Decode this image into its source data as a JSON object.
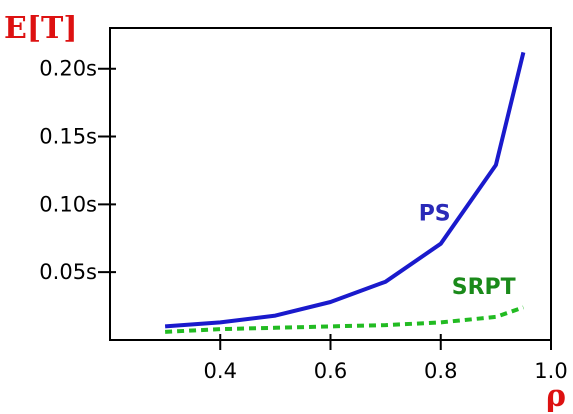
{
  "chart_data": {
    "type": "line",
    "ylabel": "E[T]",
    "xlabel": "ρ",
    "xlim": [
      0.2,
      1.0
    ],
    "ylim": [
      0,
      0.23
    ],
    "x_ticks": [
      {
        "value": 0.4,
        "label": "0.4"
      },
      {
        "value": 0.6,
        "label": "0.6"
      },
      {
        "value": 0.8,
        "label": "0.8"
      },
      {
        "value": 1.0,
        "label": "1.0"
      }
    ],
    "y_ticks": [
      {
        "value": 0.05,
        "label": "0.05s"
      },
      {
        "value": 0.1,
        "label": "0.10s"
      },
      {
        "value": 0.15,
        "label": "0.15s"
      },
      {
        "value": 0.2,
        "label": "0.20s"
      }
    ],
    "grid": false,
    "series": [
      {
        "name": "PS",
        "color": "#1a1acc",
        "style": "solid",
        "x": [
          0.3,
          0.4,
          0.5,
          0.6,
          0.7,
          0.8,
          0.9,
          0.95
        ],
        "y": [
          0.01,
          0.013,
          0.018,
          0.028,
          0.043,
          0.071,
          0.129,
          0.212
        ]
      },
      {
        "name": "SRPT",
        "color": "#22bb22",
        "style": "dashed",
        "x": [
          0.3,
          0.4,
          0.5,
          0.6,
          0.7,
          0.8,
          0.9,
          0.95
        ],
        "y": [
          0.006,
          0.008,
          0.009,
          0.01,
          0.011,
          0.013,
          0.017,
          0.024
        ]
      }
    ],
    "annotations": [
      {
        "text": "PS",
        "x": 0.76,
        "y": 0.088,
        "color": "#2a2ab8"
      },
      {
        "text": "SRPT",
        "x": 0.82,
        "y": 0.034,
        "color": "#1a8a1a"
      }
    ]
  }
}
